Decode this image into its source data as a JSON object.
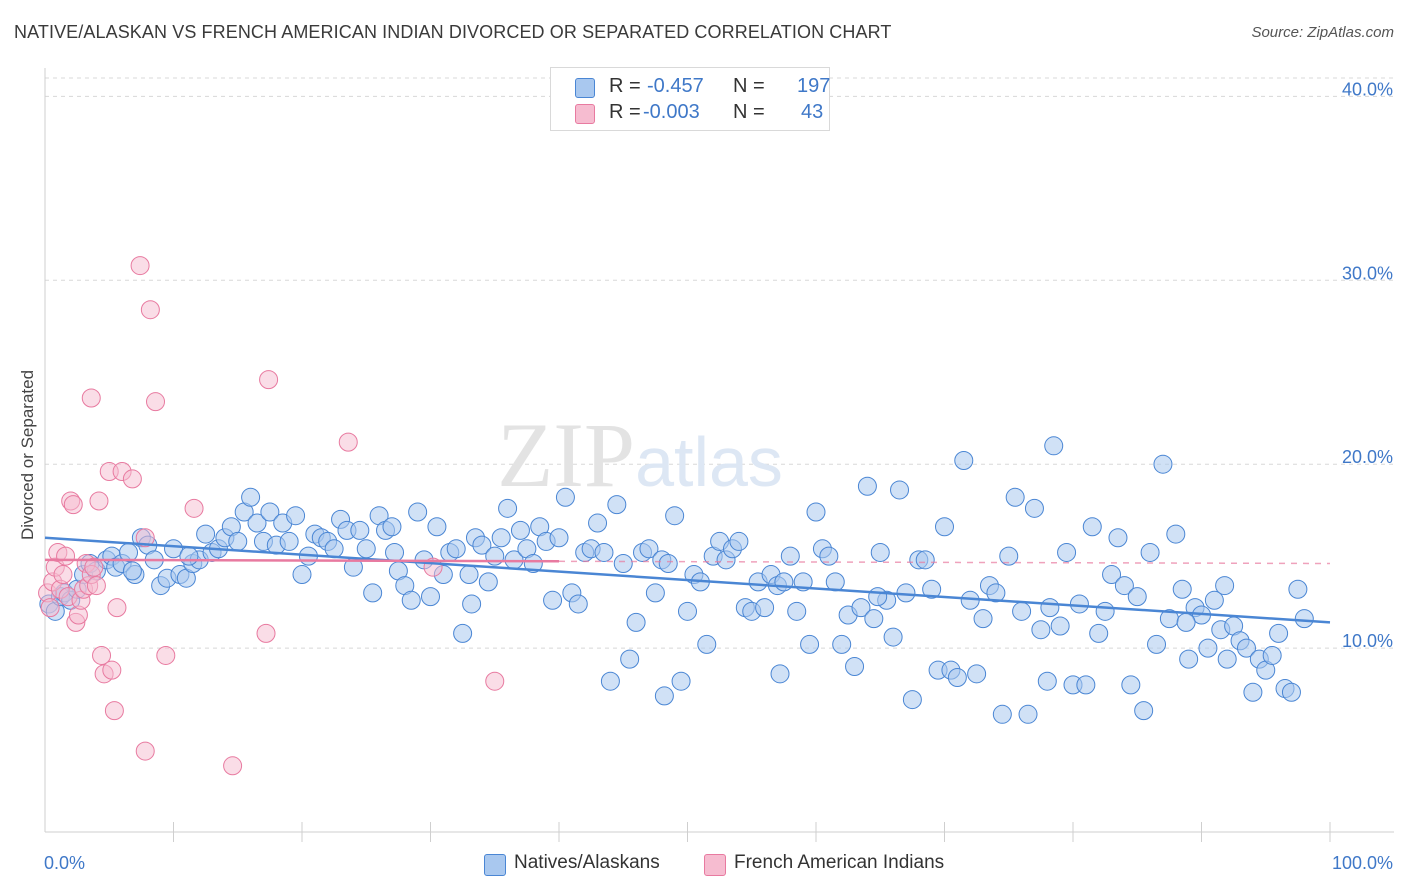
{
  "header": {
    "title": "NATIVE/ALASKAN VS FRENCH AMERICAN INDIAN DIVORCED OR SEPARATED CORRELATION CHART",
    "source": "Source: ZipAtlas.com"
  },
  "legend_top": {
    "rows": [
      {
        "r_label": "R =",
        "r_value": "-0.457",
        "n_label": "N =",
        "n_value": "197"
      },
      {
        "r_label": "R =",
        "r_value": "-0.003",
        "n_label": "N =",
        "n_value": "43"
      }
    ]
  },
  "legend_bottom": {
    "items": [
      "Natives/Alaskans",
      "French American Indians"
    ]
  },
  "colors": {
    "blue": "#4a86d4",
    "blue_fill": "#a9c8ef",
    "pink": "#e87aa0",
    "pink_fill": "#f6bcd0",
    "tick_text": "#3f78c8",
    "grid": "#d8d8d8"
  },
  "chart_data": {
    "type": "scatter",
    "title": "NATIVE/ALASKAN VS FRENCH AMERICAN INDIAN DIVORCED OR SEPARATED CORRELATION CHART",
    "xlabel": "",
    "ylabel": "Divorced or Separated",
    "xlim": [
      0,
      100
    ],
    "ylim": [
      0,
      41
    ],
    "x_tick_labels": [
      "0.0%",
      "100.0%"
    ],
    "y_ticks": [
      10,
      20,
      30,
      40
    ],
    "y_tick_labels": [
      "10.0%",
      "20.0%",
      "30.0%",
      "40.0%"
    ],
    "grid": true,
    "watermark": "ZIPatlas",
    "series": [
      {
        "name": "Natives/Alaskans",
        "color": "#4a86d4",
        "R": -0.457,
        "N": 197,
        "trend": {
          "x": [
            0,
            100
          ],
          "y": [
            16.0,
            11.4
          ],
          "style": "solid"
        },
        "points": [
          [
            0.3,
            12.4
          ],
          [
            0.8,
            12.0
          ],
          [
            1.2,
            12.8
          ],
          [
            1.5,
            13.0
          ],
          [
            2.0,
            12.6
          ],
          [
            2.5,
            13.2
          ],
          [
            3.0,
            14.0
          ],
          [
            3.5,
            14.6
          ],
          [
            4.0,
            14.2
          ],
          [
            4.8,
            14.8
          ],
          [
            5.2,
            15.0
          ],
          [
            5.5,
            14.4
          ],
          [
            6.0,
            14.6
          ],
          [
            6.5,
            15.2
          ],
          [
            7.0,
            14.0
          ],
          [
            7.5,
            16.0
          ],
          [
            8.0,
            15.6
          ],
          [
            8.5,
            14.8
          ],
          [
            9.0,
            13.4
          ],
          [
            9.5,
            13.8
          ],
          [
            10.0,
            15.4
          ],
          [
            10.5,
            14.0
          ],
          [
            11.0,
            13.8
          ],
          [
            11.5,
            14.6
          ],
          [
            12.0,
            14.8
          ],
          [
            12.5,
            16.2
          ],
          [
            13.0,
            15.2
          ],
          [
            13.5,
            15.4
          ],
          [
            14.0,
            16.0
          ],
          [
            14.5,
            16.6
          ],
          [
            15.0,
            15.8
          ],
          [
            15.5,
            17.4
          ],
          [
            16.0,
            18.2
          ],
          [
            16.5,
            16.8
          ],
          [
            17.0,
            15.8
          ],
          [
            17.5,
            17.4
          ],
          [
            18.0,
            15.6
          ],
          [
            18.5,
            16.8
          ],
          [
            19.0,
            15.8
          ],
          [
            19.5,
            17.2
          ],
          [
            20.0,
            14.0
          ],
          [
            20.5,
            15.0
          ],
          [
            21.0,
            16.2
          ],
          [
            21.5,
            16.0
          ],
          [
            22.0,
            15.8
          ],
          [
            22.5,
            15.4
          ],
          [
            23.0,
            17.0
          ],
          [
            23.5,
            16.4
          ],
          [
            24.0,
            14.4
          ],
          [
            24.5,
            16.4
          ],
          [
            25.0,
            15.4
          ],
          [
            25.5,
            13.0
          ],
          [
            26.0,
            17.2
          ],
          [
            26.5,
            16.4
          ],
          [
            27.0,
            16.6
          ],
          [
            27.5,
            14.2
          ],
          [
            28.0,
            13.4
          ],
          [
            28.5,
            12.6
          ],
          [
            29.0,
            17.4
          ],
          [
            29.5,
            14.8
          ],
          [
            30.0,
            12.8
          ],
          [
            30.5,
            16.6
          ],
          [
            31.0,
            14.0
          ],
          [
            31.5,
            15.2
          ],
          [
            32.0,
            15.4
          ],
          [
            32.5,
            10.8
          ],
          [
            33.0,
            14.0
          ],
          [
            33.5,
            16.0
          ],
          [
            34.0,
            15.6
          ],
          [
            34.5,
            13.6
          ],
          [
            35.0,
            15.0
          ],
          [
            35.5,
            16.0
          ],
          [
            36.0,
            17.6
          ],
          [
            36.5,
            14.8
          ],
          [
            37.0,
            16.4
          ],
          [
            37.5,
            15.4
          ],
          [
            38.0,
            14.6
          ],
          [
            38.5,
            16.6
          ],
          [
            39.0,
            15.8
          ],
          [
            39.5,
            12.6
          ],
          [
            40.0,
            16.0
          ],
          [
            40.5,
            18.2
          ],
          [
            41.0,
            13.0
          ],
          [
            41.5,
            12.4
          ],
          [
            42.0,
            15.2
          ],
          [
            42.5,
            15.4
          ],
          [
            43.0,
            16.8
          ],
          [
            43.5,
            15.2
          ],
          [
            44.0,
            8.2
          ],
          [
            44.5,
            17.8
          ],
          [
            45.0,
            14.6
          ],
          [
            45.5,
            9.4
          ],
          [
            46.0,
            11.4
          ],
          [
            46.5,
            15.2
          ],
          [
            47.0,
            15.4
          ],
          [
            47.5,
            13.0
          ],
          [
            48.0,
            14.8
          ],
          [
            48.5,
            14.6
          ],
          [
            49.0,
            17.2
          ],
          [
            49.5,
            8.2
          ],
          [
            50.0,
            12.0
          ],
          [
            50.5,
            14.0
          ],
          [
            51.0,
            13.6
          ],
          [
            51.5,
            10.2
          ],
          [
            52.0,
            15.0
          ],
          [
            52.5,
            15.8
          ],
          [
            53.0,
            14.8
          ],
          [
            53.5,
            15.4
          ],
          [
            54.0,
            15.8
          ],
          [
            54.5,
            12.2
          ],
          [
            55.0,
            12.0
          ],
          [
            55.5,
            13.6
          ],
          [
            56.0,
            12.2
          ],
          [
            56.5,
            14.0
          ],
          [
            57.0,
            13.4
          ],
          [
            57.5,
            13.6
          ],
          [
            58.0,
            15.0
          ],
          [
            58.5,
            12.0
          ],
          [
            59.0,
            13.6
          ],
          [
            59.5,
            10.2
          ],
          [
            60.0,
            17.4
          ],
          [
            60.5,
            15.4
          ],
          [
            61.0,
            15.0
          ],
          [
            61.5,
            13.6
          ],
          [
            62.0,
            10.2
          ],
          [
            62.5,
            11.8
          ],
          [
            63.0,
            9.0
          ],
          [
            63.5,
            12.2
          ],
          [
            64.0,
            18.8
          ],
          [
            64.5,
            11.6
          ],
          [
            65.0,
            15.2
          ],
          [
            65.5,
            12.6
          ],
          [
            66.0,
            10.6
          ],
          [
            66.5,
            18.6
          ],
          [
            67.0,
            13.0
          ],
          [
            67.5,
            7.2
          ],
          [
            68.0,
            14.8
          ],
          [
            68.5,
            14.8
          ],
          [
            69.0,
            13.2
          ],
          [
            69.5,
            8.8
          ],
          [
            70.0,
            16.6
          ],
          [
            70.5,
            8.8
          ],
          [
            71.0,
            8.4
          ],
          [
            71.5,
            20.2
          ],
          [
            72.0,
            12.6
          ],
          [
            72.5,
            8.6
          ],
          [
            73.0,
            11.6
          ],
          [
            73.5,
            13.4
          ],
          [
            74.0,
            13.0
          ],
          [
            74.5,
            6.4
          ],
          [
            75.0,
            15.0
          ],
          [
            75.5,
            18.2
          ],
          [
            76.0,
            12.0
          ],
          [
            76.5,
            6.4
          ],
          [
            77.0,
            17.6
          ],
          [
            77.5,
            11.0
          ],
          [
            78.0,
            8.2
          ],
          [
            78.5,
            21.0
          ],
          [
            79.0,
            11.2
          ],
          [
            79.5,
            15.2
          ],
          [
            80.0,
            8.0
          ],
          [
            80.5,
            12.4
          ],
          [
            81.0,
            8.0
          ],
          [
            81.5,
            16.6
          ],
          [
            82.0,
            10.8
          ],
          [
            82.5,
            12.0
          ],
          [
            83.0,
            14.0
          ],
          [
            83.5,
            16.0
          ],
          [
            84.0,
            13.4
          ],
          [
            84.5,
            8.0
          ],
          [
            85.0,
            12.8
          ],
          [
            85.5,
            6.6
          ],
          [
            86.0,
            15.2
          ],
          [
            86.5,
            10.2
          ],
          [
            87.0,
            20.0
          ],
          [
            87.5,
            11.6
          ],
          [
            88.0,
            16.2
          ],
          [
            88.5,
            13.2
          ],
          [
            89.0,
            9.4
          ],
          [
            89.5,
            12.2
          ],
          [
            90.0,
            11.8
          ],
          [
            90.5,
            10.0
          ],
          [
            91.0,
            12.6
          ],
          [
            91.5,
            11.0
          ],
          [
            92.0,
            9.4
          ],
          [
            92.5,
            11.2
          ],
          [
            93.0,
            10.4
          ],
          [
            93.5,
            10.0
          ],
          [
            94.0,
            7.6
          ],
          [
            94.5,
            9.4
          ],
          [
            95.0,
            8.8
          ],
          [
            95.5,
            9.6
          ],
          [
            96.0,
            10.8
          ],
          [
            96.5,
            7.8
          ],
          [
            97.0,
            7.6
          ],
          [
            97.5,
            13.2
          ],
          [
            98.0,
            11.6
          ],
          [
            6.8,
            14.2
          ],
          [
            11.2,
            15.0
          ],
          [
            27.2,
            15.2
          ],
          [
            33.2,
            12.4
          ],
          [
            48.2,
            7.4
          ],
          [
            64.8,
            12.8
          ],
          [
            88.8,
            11.4
          ],
          [
            91.8,
            13.4
          ],
          [
            78.2,
            12.2
          ],
          [
            57.2,
            8.6
          ]
        ]
      },
      {
        "name": "French American Indians",
        "color": "#e87aa0",
        "R": -0.003,
        "N": 43,
        "trend": {
          "x": [
            0,
            100
          ],
          "y": [
            14.8,
            14.6
          ],
          "solid_until": 40
        },
        "points": [
          [
            0.2,
            13.0
          ],
          [
            0.4,
            12.2
          ],
          [
            0.6,
            13.6
          ],
          [
            0.8,
            14.4
          ],
          [
            1.0,
            15.2
          ],
          [
            1.2,
            13.2
          ],
          [
            1.4,
            14.0
          ],
          [
            1.6,
            15.0
          ],
          [
            1.8,
            12.8
          ],
          [
            2.0,
            18.0
          ],
          [
            2.2,
            17.8
          ],
          [
            2.4,
            11.4
          ],
          [
            2.6,
            11.8
          ],
          [
            2.8,
            12.6
          ],
          [
            3.0,
            13.2
          ],
          [
            3.2,
            14.6
          ],
          [
            3.4,
            13.4
          ],
          [
            3.6,
            14.0
          ],
          [
            3.8,
            14.4
          ],
          [
            3.6,
            23.6
          ],
          [
            4.2,
            18.0
          ],
          [
            4.0,
            13.4
          ],
          [
            4.4,
            9.6
          ],
          [
            4.6,
            8.6
          ],
          [
            5.0,
            19.6
          ],
          [
            5.2,
            8.8
          ],
          [
            5.4,
            6.6
          ],
          [
            5.6,
            12.2
          ],
          [
            6.0,
            19.6
          ],
          [
            6.8,
            19.2
          ],
          [
            7.4,
            30.8
          ],
          [
            7.8,
            16.0
          ],
          [
            7.8,
            4.4
          ],
          [
            8.2,
            28.4
          ],
          [
            8.6,
            23.4
          ],
          [
            9.4,
            9.6
          ],
          [
            11.6,
            17.6
          ],
          [
            14.6,
            3.6
          ],
          [
            17.4,
            24.6
          ],
          [
            17.2,
            10.8
          ],
          [
            23.6,
            21.2
          ],
          [
            35.0,
            8.2
          ],
          [
            30.2,
            14.4
          ]
        ]
      }
    ]
  }
}
